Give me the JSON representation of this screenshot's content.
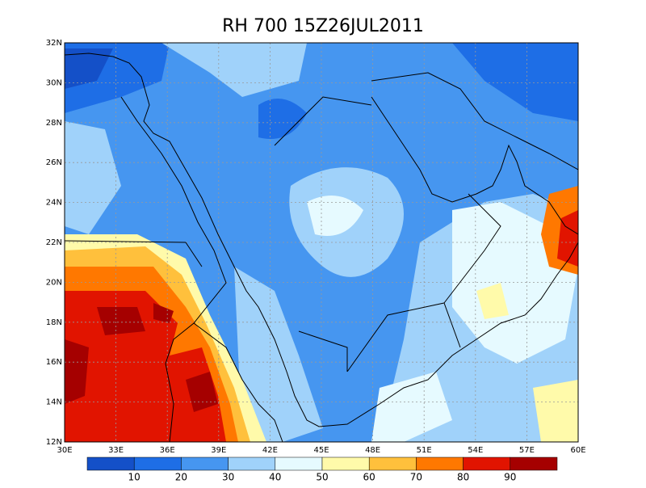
{
  "title": "RH 700 15Z26JUL2011",
  "axes": {
    "x_ticks": [
      {
        "value": 30,
        "label": "30E"
      },
      {
        "value": 33,
        "label": "33E"
      },
      {
        "value": 36,
        "label": "36E"
      },
      {
        "value": 39,
        "label": "39E"
      },
      {
        "value": 42,
        "label": "42E"
      },
      {
        "value": 45,
        "label": "45E"
      },
      {
        "value": 48,
        "label": "48E"
      },
      {
        "value": 51,
        "label": "51E"
      },
      {
        "value": 54,
        "label": "54E"
      },
      {
        "value": 57,
        "label": "57E"
      },
      {
        "value": 60,
        "label": "60E"
      }
    ],
    "y_ticks": [
      {
        "value": 12,
        "label": "12N"
      },
      {
        "value": 14,
        "label": "14N"
      },
      {
        "value": 16,
        "label": "16N"
      },
      {
        "value": 18,
        "label": "18N"
      },
      {
        "value": 20,
        "label": "20N"
      },
      {
        "value": 22,
        "label": "22N"
      },
      {
        "value": 24,
        "label": "24N"
      },
      {
        "value": 26,
        "label": "26N"
      },
      {
        "value": 28,
        "label": "28N"
      },
      {
        "value": 30,
        "label": "30N"
      },
      {
        "value": 32,
        "label": "32N"
      }
    ]
  },
  "colorbar": {
    "levels": [
      10,
      20,
      30,
      40,
      50,
      60,
      70,
      80,
      90
    ],
    "colors": [
      "#1450c8",
      "#1e6ee6",
      "#4696f0",
      "#a0d2fa",
      "#e6faff",
      "#fffaaa",
      "#ffc03c",
      "#ff7800",
      "#e11400",
      "#a50000"
    ]
  }
}
